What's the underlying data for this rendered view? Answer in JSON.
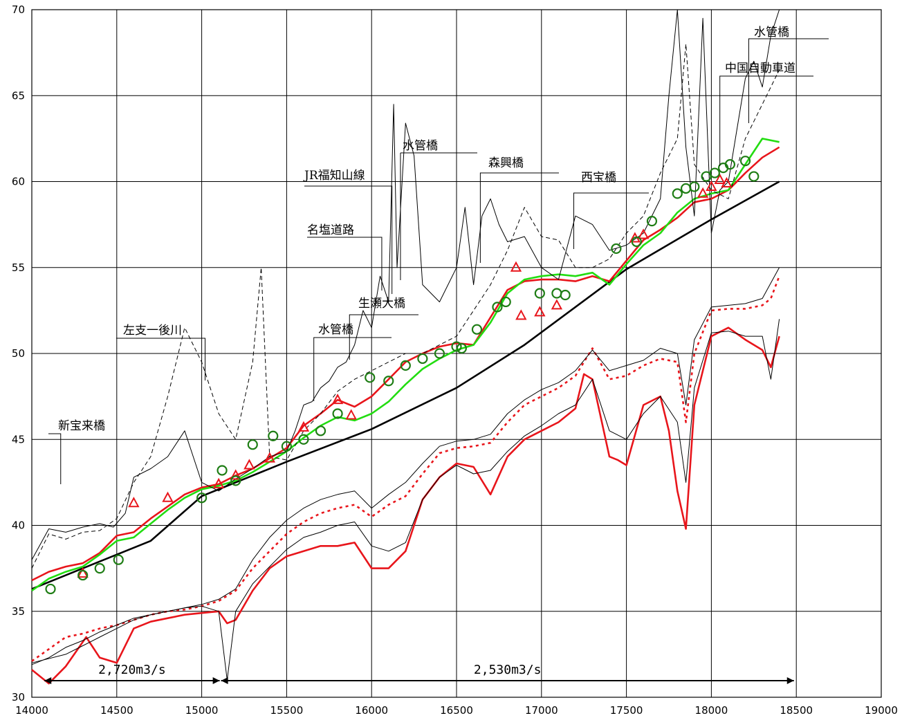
{
  "chart_data": {
    "type": "line",
    "title": "",
    "xlabel": "",
    "ylabel": "",
    "xlim": [
      14000,
      19000
    ],
    "ylim": [
      30,
      70
    ],
    "xticks": [
      14000,
      14500,
      15000,
      15500,
      16000,
      16500,
      17000,
      17500,
      18000,
      18500,
      19000
    ],
    "yticks": [
      30,
      35,
      40,
      45,
      50,
      55,
      60,
      65,
      70
    ],
    "grid": true,
    "series": [
      {
        "role": "planned-high-water",
        "color": "#000000",
        "style": "solid-thick",
        "x": [
          14000,
          14700,
          15000,
          15500,
          16000,
          16500,
          16900,
          17500,
          18000,
          18400
        ],
        "y": [
          36.3,
          39.1,
          41.7,
          43.7,
          45.6,
          48.0,
          50.5,
          54.9,
          57.8,
          60.0
        ]
      },
      {
        "role": "water-level-red",
        "color": "#e8151b",
        "style": "solid",
        "x": [
          14000,
          14100,
          14200,
          14300,
          14400,
          14500,
          14600,
          14700,
          14800,
          14900,
          15000,
          15100,
          15200,
          15300,
          15400,
          15500,
          15600,
          15700,
          15800,
          15900,
          16000,
          16100,
          16200,
          16300,
          16400,
          16500,
          16600,
          16700,
          16800,
          16900,
          17000,
          17100,
          17200,
          17300,
          17400,
          17500,
          17600,
          17700,
          17800,
          17900,
          18000,
          18100,
          18200,
          18300,
          18400
        ],
        "y": [
          36.8,
          37.3,
          37.6,
          37.8,
          38.4,
          39.4,
          39.6,
          40.4,
          41.1,
          41.8,
          42.2,
          42.4,
          42.9,
          43.3,
          43.9,
          44.5,
          45.8,
          46.5,
          47.3,
          46.9,
          47.5,
          48.5,
          49.5,
          50.0,
          50.4,
          50.6,
          50.5,
          52.1,
          53.7,
          54.2,
          54.3,
          54.3,
          54.2,
          54.5,
          54.2,
          55.4,
          56.6,
          57.2,
          57.9,
          58.8,
          59.0,
          59.5,
          60.5,
          61.4,
          62.0
        ]
      },
      {
        "role": "water-level-green",
        "color": "#22dd11",
        "style": "solid",
        "x": [
          14000,
          14100,
          14200,
          14300,
          14400,
          14500,
          14600,
          14700,
          14800,
          14900,
          15000,
          15100,
          15200,
          15300,
          15400,
          15500,
          15600,
          15700,
          15800,
          15900,
          16000,
          16100,
          16200,
          16300,
          16400,
          16500,
          16600,
          16700,
          16800,
          16900,
          17000,
          17100,
          17200,
          17300,
          17400,
          17500,
          17600,
          17700,
          17800,
          17900,
          18000,
          18100,
          18200,
          18300,
          18400
        ],
        "y": [
          36.2,
          36.9,
          37.3,
          37.6,
          38.3,
          39.1,
          39.3,
          40.1,
          40.9,
          41.6,
          42.1,
          42.3,
          42.6,
          43.1,
          43.7,
          44.3,
          45.1,
          45.8,
          46.3,
          46.1,
          46.5,
          47.2,
          48.2,
          49.1,
          49.7,
          50.2,
          50.5,
          51.8,
          53.5,
          54.3,
          54.5,
          54.6,
          54.5,
          54.7,
          54.0,
          55.2,
          56.3,
          57.0,
          58.2,
          59.0,
          59.3,
          59.5,
          61.0,
          62.5,
          62.3
        ]
      },
      {
        "role": "observed-triangles",
        "color": "#e8151b",
        "style": "triangle",
        "x": [
          14300,
          14600,
          14800,
          15100,
          15200,
          15280,
          15400,
          15600,
          15800,
          15880,
          16850,
          16880,
          16990,
          17090,
          17550,
          17600,
          17950,
          18000,
          18050,
          18090
        ],
        "y": [
          37.2,
          41.3,
          41.6,
          42.4,
          42.9,
          43.5,
          43.9,
          45.7,
          47.3,
          46.4,
          55.0,
          52.2,
          52.4,
          52.8,
          56.7,
          56.9,
          59.3,
          59.7,
          60.1,
          59.9
        ]
      },
      {
        "role": "observed-circles",
        "color": "#1e7d14",
        "style": "circle",
        "x": [
          14110,
          14300,
          14400,
          14510,
          15000,
          15120,
          15200,
          15300,
          15420,
          15500,
          15600,
          15700,
          15800,
          15990,
          16100,
          16200,
          16300,
          16400,
          16500,
          16530,
          16620,
          16740,
          16790,
          16990,
          17090,
          17140,
          17440,
          17560,
          17650,
          17800,
          17850,
          17900,
          17970,
          18020,
          18070,
          18110,
          18200,
          18250
        ],
        "y": [
          36.3,
          37.1,
          37.5,
          38.0,
          41.6,
          43.2,
          42.6,
          44.7,
          45.2,
          44.6,
          45.0,
          45.5,
          46.5,
          48.6,
          48.4,
          49.3,
          49.7,
          50.0,
          50.4,
          50.3,
          51.4,
          52.7,
          53.0,
          53.5,
          53.5,
          53.4,
          56.1,
          56.5,
          57.7,
          59.3,
          59.6,
          59.7,
          60.3,
          60.5,
          60.8,
          61.0,
          61.2,
          60.3
        ]
      },
      {
        "role": "left-bank-height",
        "color": "#000000",
        "style": "thin",
        "x": [
          14000,
          14100,
          14200,
          14300,
          14400,
          14480,
          14550,
          14600,
          14700,
          14800,
          14900,
          15000,
          15100,
          15200,
          15300,
          15400,
          15500,
          15550,
          15600,
          15650,
          15700,
          15750,
          15800,
          15850,
          15900,
          15950,
          16000,
          16050,
          16100,
          16130,
          16150,
          16200,
          16250,
          16300,
          16400,
          16500,
          16550,
          16600,
          16650,
          16700,
          16750,
          16800,
          16900,
          17000,
          17100,
          17200,
          17300,
          17400,
          17500,
          17600,
          17700,
          17750,
          17800,
          17850,
          17900,
          17950,
          18000,
          18050,
          18100,
          18150,
          18200,
          18250,
          18300,
          18350,
          18400
        ],
        "y": [
          38.0,
          39.8,
          39.6,
          39.9,
          40.1,
          39.9,
          40.7,
          42.8,
          43.3,
          44.0,
          45.5,
          42.5,
          42.0,
          42.7,
          43.3,
          44.0,
          44.3,
          45.5,
          47.0,
          47.2,
          48.0,
          48.4,
          49.2,
          49.5,
          50.5,
          52.5,
          51.5,
          54.5,
          53.0,
          64.5,
          55.0,
          63.4,
          61.5,
          54.0,
          53.0,
          55.0,
          58.5,
          54.0,
          58.0,
          59.0,
          57.5,
          56.5,
          56.8,
          55.0,
          54.3,
          58.0,
          57.5,
          56.0,
          56.3,
          57.0,
          59.0,
          65.0,
          70.0,
          62.0,
          58.0,
          69.5,
          57.0,
          59.5,
          60.0,
          63.0,
          66.0,
          67.0,
          65.5,
          68.5,
          70.0
        ]
      },
      {
        "role": "right-bank-height",
        "color": "#000000",
        "style": "dashed",
        "x": [
          14000,
          14100,
          14200,
          14300,
          14400,
          14500,
          14600,
          14700,
          14800,
          14900,
          15000,
          15100,
          15200,
          15300,
          15350,
          15400,
          15500,
          15600,
          15700,
          15800,
          15900,
          16000,
          16100,
          16200,
          16300,
          16400,
          16500,
          16600,
          16700,
          16800,
          16900,
          17000,
          17100,
          17200,
          17300,
          17400,
          17500,
          17600,
          17700,
          17800,
          17850,
          17900,
          18000,
          18100,
          18200,
          18300,
          18400
        ],
        "y": [
          37.5,
          39.5,
          39.2,
          39.6,
          39.7,
          40.4,
          42.5,
          44.0,
          47.5,
          51.5,
          49.5,
          46.5,
          45.0,
          49.5,
          55.0,
          44.0,
          43.8,
          45.5,
          46.5,
          47.8,
          48.5,
          49.0,
          49.5,
          50.0,
          50.0,
          50.5,
          51.0,
          52.5,
          54.0,
          56.0,
          58.5,
          56.8,
          56.6,
          55.0,
          55.0,
          55.5,
          57.0,
          58.0,
          60.5,
          62.5,
          68.0,
          61.0,
          59.5,
          59.0,
          62.5,
          64.5,
          66.5
        ]
      },
      {
        "role": "riverbed-lowest-red",
        "color": "#e8151b",
        "style": "solid",
        "x": [
          14000,
          14100,
          14200,
          14320,
          14400,
          14500,
          14600,
          14700,
          14800,
          14900,
          15000,
          15100,
          15150,
          15200,
          15300,
          15400,
          15500,
          15600,
          15700,
          15800,
          15900,
          16000,
          16100,
          16200,
          16300,
          16400,
          16500,
          16600,
          16700,
          16800,
          16900,
          17000,
          17100,
          17200,
          17250,
          17300,
          17400,
          17450,
          17500,
          17600,
          17700,
          17750,
          17800,
          17850,
          17900,
          18000,
          18100,
          18200,
          18300,
          18350,
          18400
        ],
        "y": [
          31.6,
          30.8,
          31.8,
          33.5,
          32.3,
          32.0,
          34.0,
          34.4,
          34.6,
          34.8,
          34.9,
          35.0,
          34.3,
          34.5,
          36.2,
          37.5,
          38.2,
          38.5,
          38.8,
          38.8,
          39.0,
          37.5,
          37.5,
          38.5,
          41.5,
          42.8,
          43.6,
          43.4,
          41.8,
          44.0,
          45.0,
          45.5,
          46.0,
          46.8,
          48.8,
          48.5,
          44.0,
          43.8,
          43.5,
          47.0,
          47.5,
          45.5,
          42.0,
          39.8,
          47.0,
          51.0,
          51.5,
          50.8,
          50.2,
          49.2,
          51.0
        ]
      },
      {
        "role": "riverbed-mean-red",
        "color": "#e8151b",
        "style": "dotted",
        "x": [
          14000,
          14100,
          14200,
          14300,
          14400,
          14500,
          14600,
          14700,
          14800,
          14900,
          15000,
          15100,
          15200,
          15300,
          15400,
          15500,
          15600,
          15700,
          15800,
          15900,
          16000,
          16100,
          16200,
          16300,
          16400,
          16500,
          16600,
          16700,
          16800,
          16900,
          17000,
          17100,
          17200,
          17300,
          17400,
          17500,
          17600,
          17700,
          17800,
          17850,
          17900,
          18000,
          18100,
          18200,
          18300,
          18350,
          18400
        ],
        "y": [
          32.1,
          32.8,
          33.5,
          33.7,
          34.0,
          34.2,
          34.5,
          34.8,
          35.0,
          35.1,
          35.3,
          35.6,
          36.2,
          37.5,
          38.5,
          39.5,
          40.2,
          40.7,
          41.0,
          41.2,
          40.5,
          41.2,
          41.7,
          43.0,
          44.2,
          44.5,
          44.6,
          44.8,
          46.0,
          47.0,
          47.5,
          48.0,
          48.7,
          50.3,
          48.5,
          48.7,
          49.3,
          49.7,
          49.5,
          46.0,
          50.0,
          52.5,
          52.6,
          52.6,
          52.8,
          53.2,
          54.5
        ]
      },
      {
        "role": "riverbed-lowest-black",
        "color": "#000000",
        "style": "thin",
        "x": [
          14000,
          14200,
          14300,
          14400,
          14500,
          14600,
          14700,
          14800,
          14900,
          15000,
          15100,
          15150,
          15200,
          15300,
          15400,
          15500,
          15600,
          15700,
          15800,
          15900,
          16000,
          16100,
          16200,
          16300,
          16400,
          16500,
          16600,
          16700,
          16800,
          16900,
          17000,
          17100,
          17200,
          17300,
          17400,
          17500,
          17600,
          17700,
          17800,
          17850,
          17900,
          18000,
          18100,
          18200,
          18300,
          18350,
          18400
        ],
        "y": [
          32.0,
          32.5,
          33.0,
          33.5,
          34.0,
          34.5,
          34.8,
          35.0,
          35.2,
          35.3,
          35.0,
          31.0,
          35.0,
          36.6,
          37.6,
          38.6,
          39.3,
          39.6,
          40.0,
          40.2,
          38.8,
          38.5,
          39.0,
          41.5,
          42.8,
          43.5,
          43.0,
          43.2,
          44.3,
          45.2,
          45.8,
          46.5,
          47.0,
          48.5,
          45.5,
          45.0,
          46.5,
          47.5,
          46.0,
          42.5,
          48.0,
          51.2,
          51.3,
          51.0,
          51.0,
          48.5,
          52.0
        ]
      },
      {
        "role": "riverbed-mean-black",
        "color": "#000000",
        "style": "thin",
        "x": [
          14000,
          14100,
          14200,
          14300,
          14400,
          14500,
          14600,
          14700,
          14800,
          14900,
          15000,
          15100,
          15200,
          15300,
          15400,
          15500,
          15600,
          15700,
          15800,
          15900,
          16000,
          16100,
          16200,
          16300,
          16400,
          16500,
          16600,
          16700,
          16800,
          16900,
          17000,
          17100,
          17200,
          17300,
          17400,
          17500,
          17600,
          17700,
          17800,
          17850,
          17900,
          18000,
          18100,
          18200,
          18300,
          18400
        ],
        "y": [
          31.9,
          32.3,
          32.9,
          33.3,
          33.8,
          34.2,
          34.6,
          34.8,
          35.0,
          35.2,
          35.4,
          35.7,
          36.3,
          38.0,
          39.3,
          40.3,
          41.0,
          41.5,
          41.8,
          42.0,
          41.0,
          41.8,
          42.5,
          43.6,
          44.6,
          44.9,
          45.0,
          45.3,
          46.5,
          47.3,
          47.9,
          48.3,
          49.0,
          50.2,
          49.0,
          49.3,
          49.6,
          50.3,
          50.0,
          47.0,
          50.8,
          52.7,
          52.8,
          52.9,
          53.2,
          55.0
        ]
      }
    ],
    "annotations": [
      {
        "text": "新宝来橋",
        "x": 14170
      },
      {
        "text": "左支一後川",
        "x": 15020
      },
      {
        "text": "水管橋",
        "x": 15660
      },
      {
        "text": "生瀬大橋",
        "x": 15870
      },
      {
        "text": "名塩道路",
        "x": 16060
      },
      {
        "text": "JR福知山線",
        "x": 16120
      },
      {
        "text": "水管橋",
        "x": 16170
      },
      {
        "text": "森興橋",
        "x": 16640
      },
      {
        "text": "西宝橋",
        "x": 17190
      },
      {
        "text": "中国自動車道",
        "x": 18050
      },
      {
        "text": "水管橋",
        "x": 18220
      }
    ],
    "flow_annotations": [
      {
        "text": "2,720m3/s",
        "x_from": 14070,
        "x_to": 15110
      },
      {
        "text": "2,530m3/s",
        "x_from": 15110,
        "x_to": 18490
      }
    ]
  }
}
